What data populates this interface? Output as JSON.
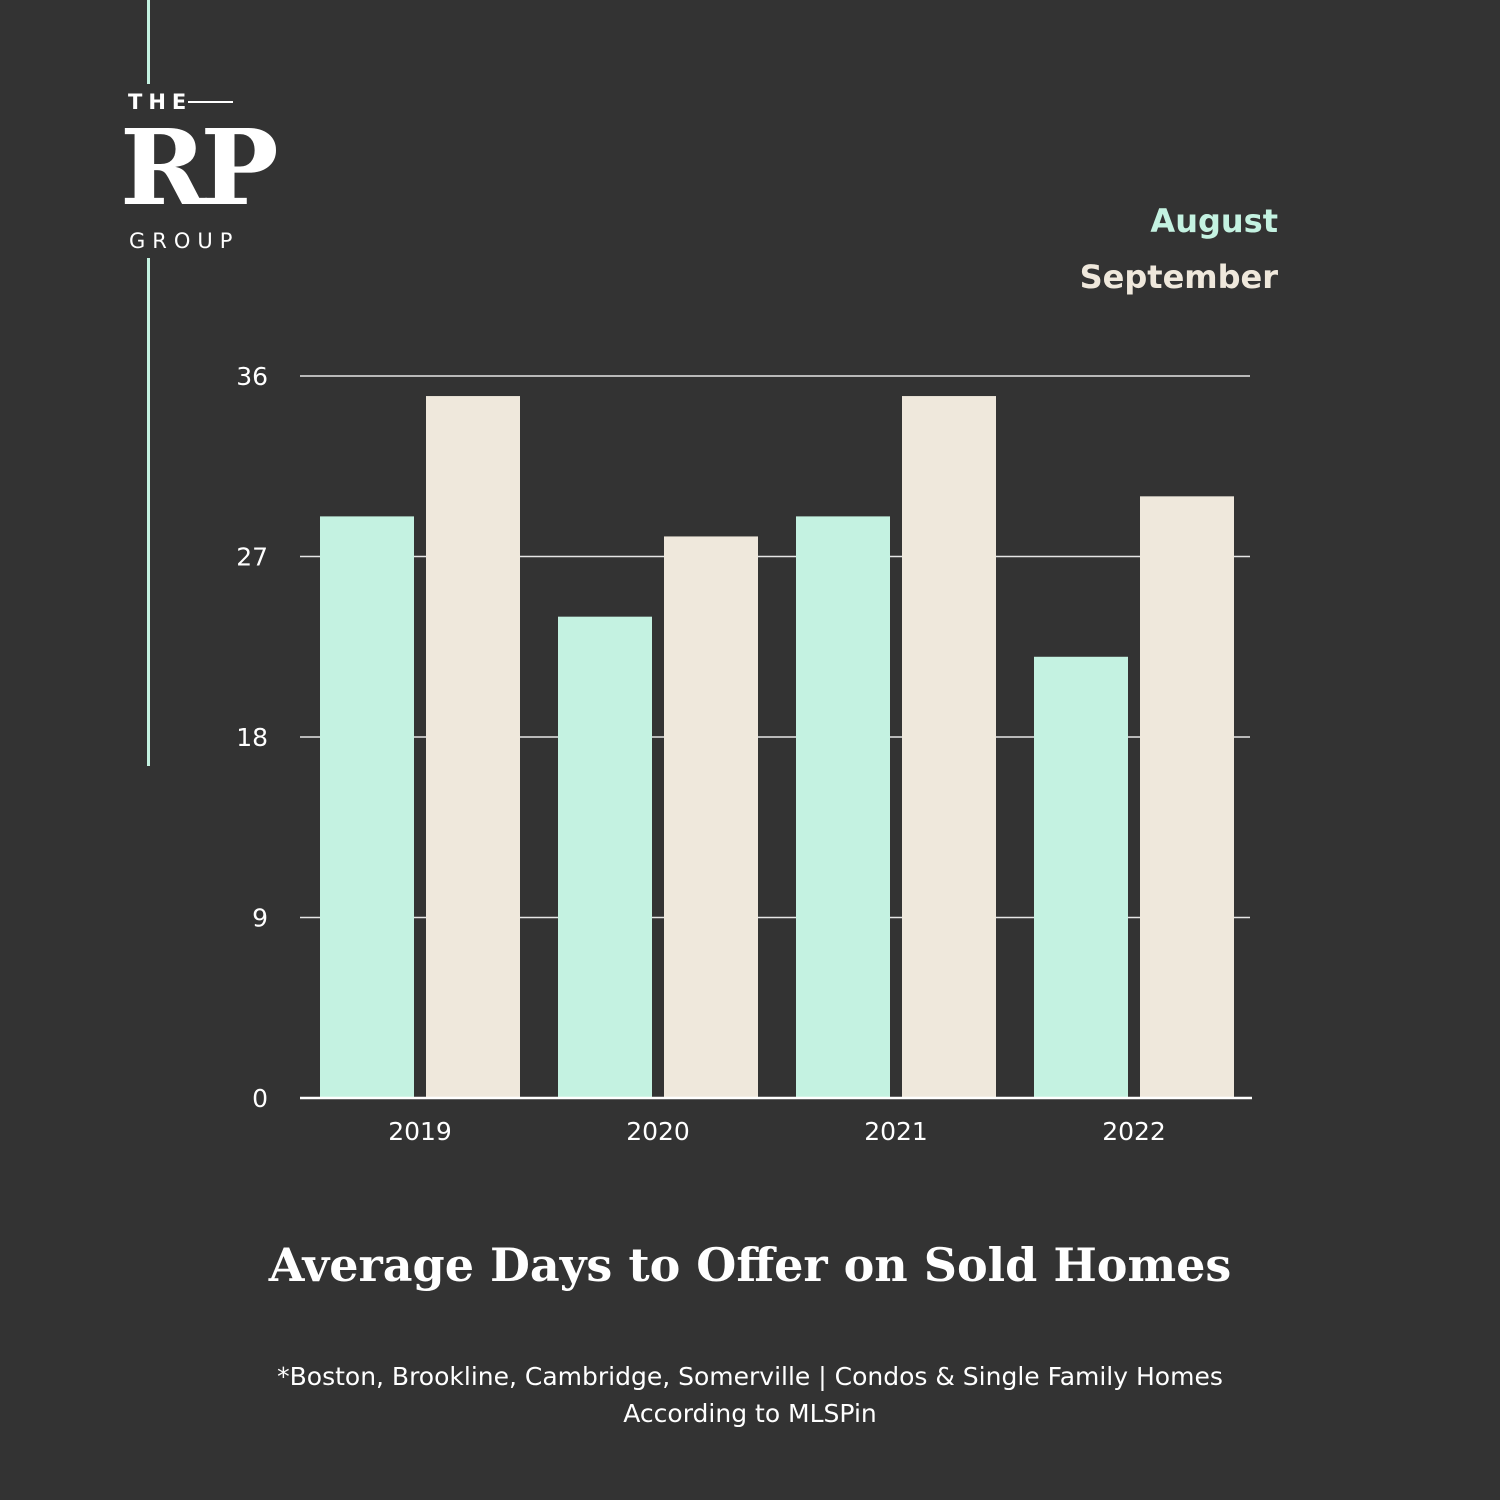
{
  "logo": {
    "the": "THE",
    "rp": "RP",
    "group": "GROUP"
  },
  "colors": {
    "background": "#333333",
    "august": "#c4f2e1",
    "september": "#efe8dc",
    "grid": "#e6e6e6"
  },
  "chart_data": {
    "type": "bar",
    "title": "Average Days to Offer on Sold Homes",
    "categories": [
      "2019",
      "2020",
      "2021",
      "2022"
    ],
    "series": [
      {
        "name": "August",
        "color": "#c4f2e1",
        "values": [
          29,
          24,
          29,
          22
        ]
      },
      {
        "name": "September",
        "color": "#efe8dc",
        "values": [
          35,
          28,
          35,
          30
        ]
      }
    ],
    "yticks": [
      "0",
      "9",
      "18",
      "27",
      "36"
    ],
    "ylim": [
      0,
      36
    ],
    "grid": true,
    "legend_position": "top-right"
  },
  "footnote": {
    "line1": "*Boston, Brookline, Cambridge, Somerville | Condos & Single Family Homes",
    "line2": "According to MLSPin"
  }
}
